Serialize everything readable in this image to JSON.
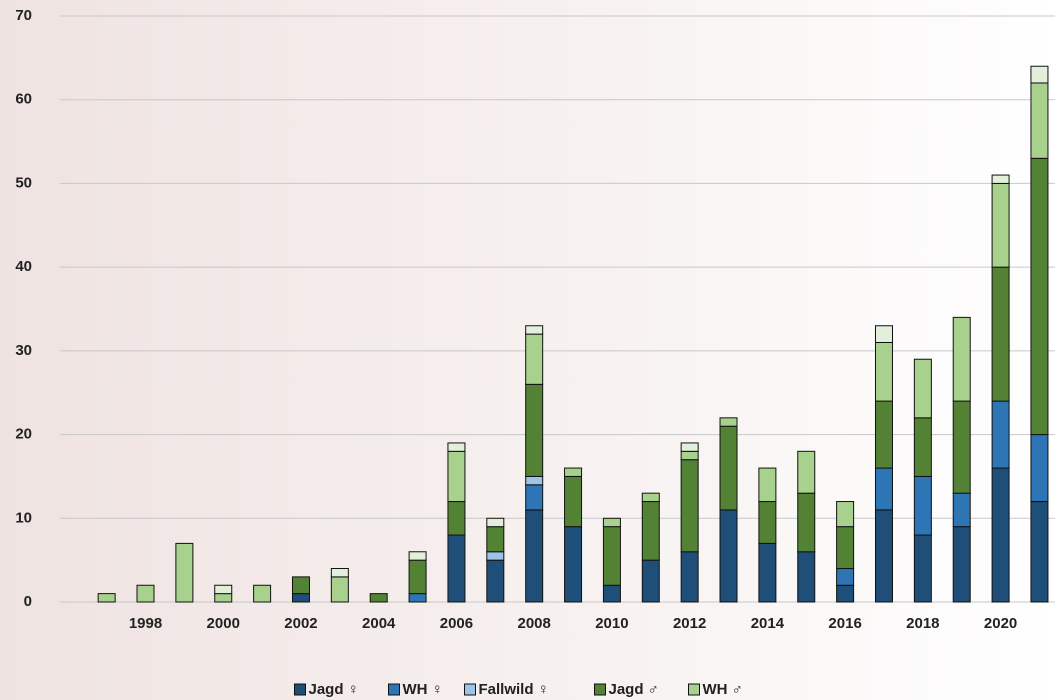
{
  "chart_data": {
    "type": "stacked-bar",
    "x": [
      1997,
      1998,
      1999,
      2000,
      2001,
      2002,
      2003,
      2004,
      2005,
      2006,
      2007,
      2008,
      2009,
      2010,
      2011,
      2012,
      2013,
      2014,
      2015,
      2016,
      2017,
      2018,
      2019,
      2020,
      2021
    ],
    "xlim": [
      1995.8,
      2021.4
    ],
    "xticks": [
      1998,
      2000,
      2002,
      2004,
      2006,
      2008,
      2010,
      2012,
      2014,
      2016,
      2018,
      2020
    ],
    "ylim": [
      0,
      70
    ],
    "yticks": [
      0,
      10,
      20,
      30,
      40,
      50,
      60,
      70
    ],
    "grid": true,
    "series": [
      {
        "name": "Jagd ♀",
        "color": "#1f4e79",
        "values": [
          0,
          0,
          0,
          0,
          0,
          1,
          0,
          0,
          0,
          8,
          5,
          11,
          9,
          2,
          5,
          6,
          11,
          7,
          6,
          2,
          11,
          8,
          9,
          16,
          12
        ]
      },
      {
        "name": "WH ♀",
        "color": "#2e75b6",
        "values": [
          0,
          0,
          0,
          0,
          0,
          0,
          0,
          0,
          1,
          0,
          0,
          3,
          0,
          0,
          0,
          0,
          0,
          0,
          0,
          2,
          5,
          7,
          4,
          8,
          8
        ]
      },
      {
        "name": "Fallwild ♀",
        "color": "#9dc3e6",
        "values": [
          0,
          0,
          0,
          0,
          0,
          0,
          0,
          0,
          0,
          0,
          1,
          1,
          0,
          0,
          0,
          0,
          0,
          0,
          0,
          0,
          0,
          0,
          0,
          0,
          0
        ]
      },
      {
        "name": "Jagd ♂",
        "color": "#548235",
        "values": [
          0,
          0,
          0,
          0,
          0,
          2,
          0,
          1,
          4,
          4,
          3,
          11,
          6,
          7,
          7,
          11,
          10,
          5,
          7,
          5,
          8,
          7,
          11,
          16,
          33
        ]
      },
      {
        "name": "WH ♂",
        "color": "#a9d18e",
        "values": [
          1,
          2,
          7,
          1,
          2,
          0,
          3,
          0,
          0,
          6,
          0,
          6,
          1,
          1,
          1,
          1,
          1,
          4,
          5,
          3,
          7,
          7,
          10,
          10,
          9
        ]
      },
      {
        "color": "#e2efda",
        "values": [
          0,
          0,
          0,
          1,
          0,
          0,
          1,
          0,
          1,
          1,
          1,
          1,
          0,
          0,
          0,
          1,
          0,
          0,
          0,
          0,
          2,
          0,
          0,
          1,
          2
        ]
      }
    ]
  }
}
